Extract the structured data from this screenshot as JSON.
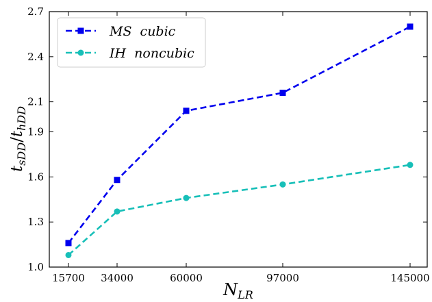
{
  "chart_data": {
    "type": "line",
    "x": [
      15700,
      34000,
      60000,
      97000,
      145000
    ],
    "xticks": [
      "15700",
      "34000",
      "60000",
      "97000",
      "145000"
    ],
    "yticks": [
      "1.0",
      "1.3",
      "1.6",
      "1.9",
      "2.1",
      "2.4",
      "2.7"
    ],
    "ylim": [
      1.0,
      2.7
    ],
    "xlabel_main": "N",
    "xlabel_sub": "LR",
    "ylabel": "t_sDD / t_hDD",
    "ylabel_parts": {
      "t1": "t",
      "s1": "sDD",
      "slash": "/",
      "t2": "t",
      "s2": "hDD"
    },
    "legend_position": "top-left",
    "grid": false,
    "series": [
      {
        "name": "MS  cubic",
        "marker": "square",
        "color": "#0000ee",
        "values": [
          1.16,
          1.58,
          2.04,
          2.16,
          2.6
        ]
      },
      {
        "name": "IH  noncubic",
        "marker": "circle",
        "color": "#17bfb8",
        "values": [
          1.08,
          1.37,
          1.46,
          1.55,
          1.68
        ]
      }
    ]
  }
}
